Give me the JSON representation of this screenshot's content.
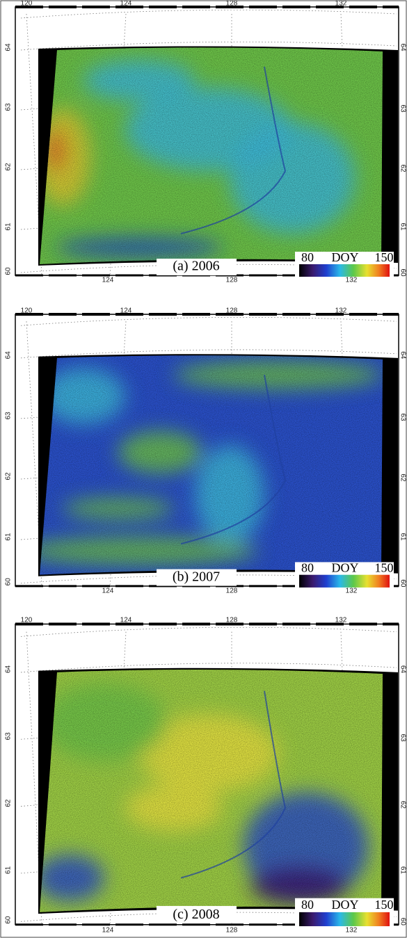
{
  "panels": [
    {
      "caption": "(a) 2006",
      "colorbar": {
        "min": 80,
        "label": "DOY",
        "max": 150
      },
      "top_ticks": [
        120,
        124,
        128,
        132
      ],
      "bottom_ticks": [
        124,
        128,
        132
      ],
      "left_ticks": [
        64,
        63,
        62,
        61,
        60
      ],
      "right_ticks": [
        64,
        63,
        62,
        61,
        60
      ]
    },
    {
      "caption": "(b) 2007",
      "colorbar": {
        "min": 80,
        "label": "DOY",
        "max": 150
      },
      "top_ticks": [
        120,
        124,
        128,
        132
      ],
      "bottom_ticks": [
        124,
        128,
        132
      ],
      "left_ticks": [
        64,
        63,
        62,
        61,
        60
      ],
      "right_ticks": [
        64,
        63,
        62,
        61,
        60
      ]
    },
    {
      "caption": "(c) 2008",
      "colorbar": {
        "min": 80,
        "label": "DOY",
        "max": 150
      },
      "top_ticks": [
        120,
        124,
        128,
        132
      ],
      "bottom_ticks": [
        124,
        128,
        132
      ],
      "left_ticks": [
        64,
        63,
        62,
        61,
        60
      ],
      "right_ticks": [
        64,
        63,
        62,
        61,
        60
      ]
    }
  ]
}
